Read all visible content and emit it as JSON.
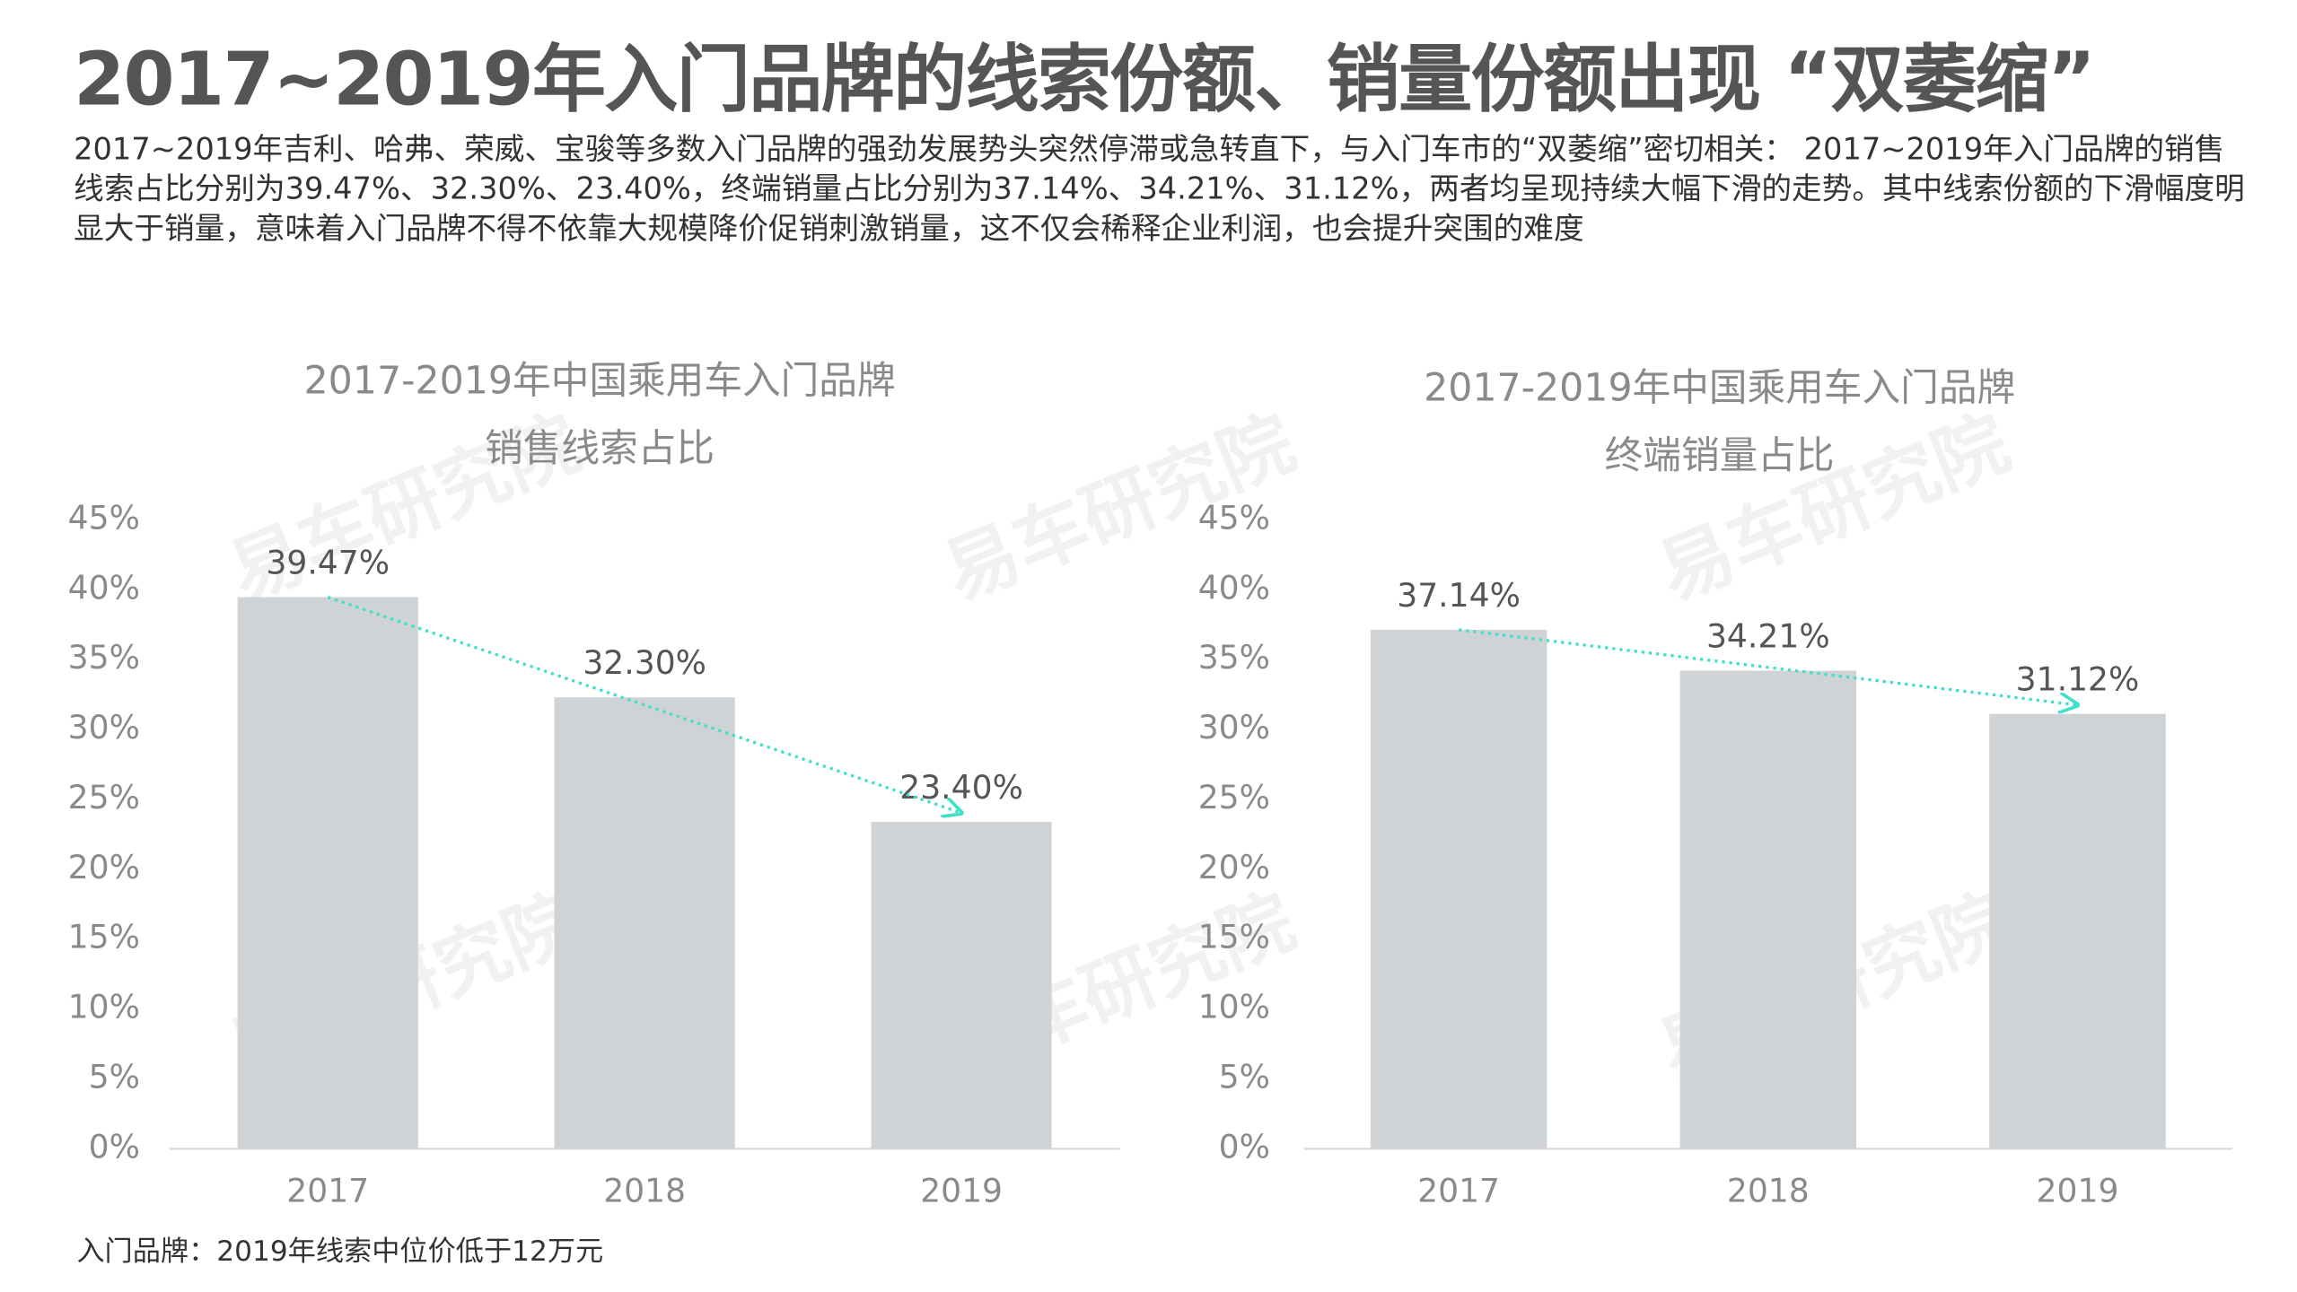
{
  "title": "2017~2019年入门品牌的线索份额、销量份额出现 “双萎缩”",
  "description": "2017~2019年吉利、哈弗、荣威、宝骏等多数入门品牌的强劲发展势头突然停滞或急转直下，与入门车市的“双萎缩”密切相关： 2017~2019年入门品牌的销售线索占比分别为39.47%、32.30%、23.40%，终端销量占比分别为37.14%、34.21%、31.12%，两者均呈现持续大幅下滑的走势。其中线索份额的下滑幅度明显大于销量，意味着入门品牌不得不依靠大规模降价促销刺激销量，这不仅会稀释企业利润，也会提升突围的难度",
  "footnote": "入门品牌：2019年线索中位价低于12万元",
  "watermark": "易车研究院",
  "chart_data": [
    {
      "type": "bar",
      "title": "2017-2019年中国乘用车入门品牌",
      "subtitle": "销售线索占比",
      "categories": [
        "2017",
        "2018",
        "2019"
      ],
      "values": [
        39.47,
        32.3,
        23.4
      ],
      "value_labels": [
        "39.47%",
        "32.30%",
        "23.40%"
      ],
      "color": "#d0d3d6",
      "trend_color": "#3ee0c8",
      "ylim": [
        0,
        45
      ],
      "grid": false,
      "yticks": [
        {
          "value": 0,
          "label": "0%"
        },
        {
          "value": 5,
          "label": "5%"
        },
        {
          "value": 10,
          "label": "10%"
        },
        {
          "value": 15,
          "label": "15%"
        },
        {
          "value": 20,
          "label": "20%"
        },
        {
          "value": 25,
          "label": "25%"
        },
        {
          "value": 30,
          "label": "30%"
        },
        {
          "value": 35,
          "label": "35%"
        },
        {
          "value": 40,
          "label": "40%"
        },
        {
          "value": 45,
          "label": "45%"
        }
      ]
    },
    {
      "type": "bar",
      "title": "2017-2019年中国乘用车入门品牌",
      "subtitle": "终端销量占比",
      "categories": [
        "2017",
        "2018",
        "2019"
      ],
      "values": [
        37.14,
        34.21,
        31.12
      ],
      "value_labels": [
        "37.14%",
        "34.21%",
        "31.12%"
      ],
      "color": "#d0d3d6",
      "trend_color": "#3ee0c8",
      "ylim": [
        0,
        45
      ],
      "grid": false,
      "yticks": [
        {
          "value": 0,
          "label": "0%"
        },
        {
          "value": 5,
          "label": "5%"
        },
        {
          "value": 10,
          "label": "10%"
        },
        {
          "value": 15,
          "label": "15%"
        },
        {
          "value": 20,
          "label": "20%"
        },
        {
          "value": 25,
          "label": "25%"
        },
        {
          "value": 30,
          "label": "30%"
        },
        {
          "value": 35,
          "label": "35%"
        },
        {
          "value": 40,
          "label": "40%"
        },
        {
          "value": 45,
          "label": "45%"
        }
      ]
    }
  ]
}
